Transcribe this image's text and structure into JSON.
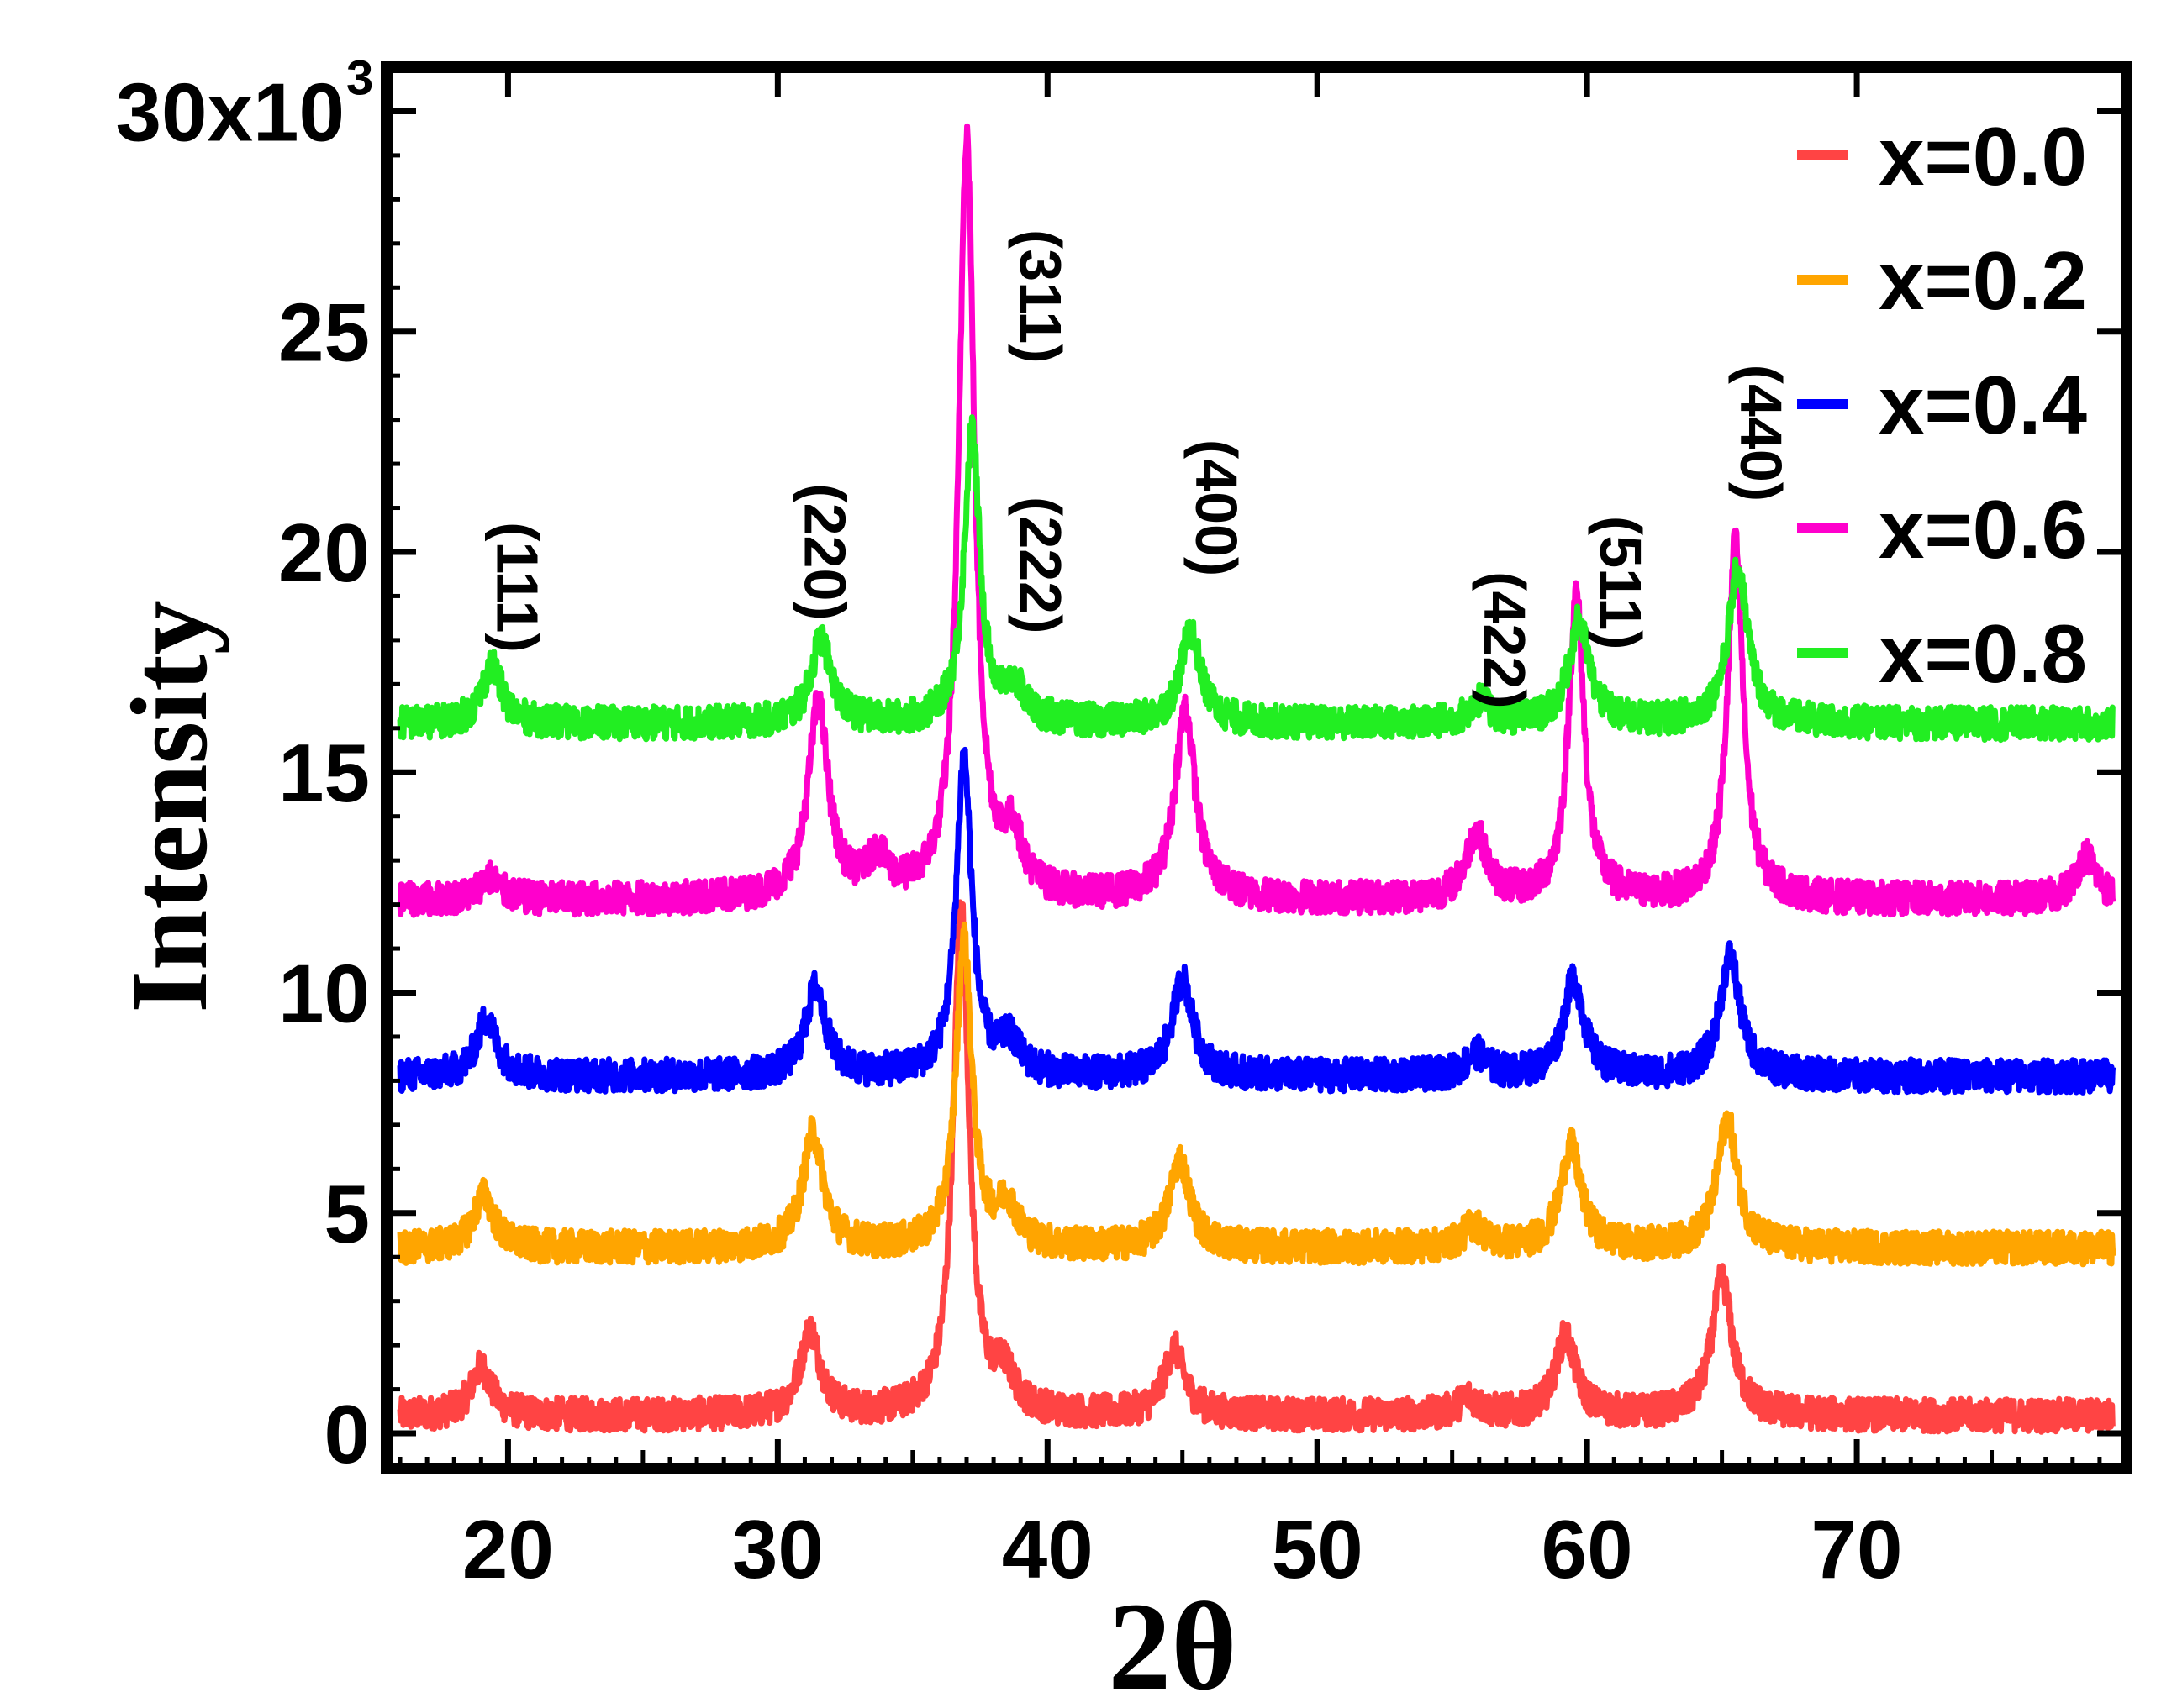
{
  "chart_data": {
    "type": "line",
    "title": "",
    "xlabel": "2θ",
    "ylabel": "Intensity",
    "xlim": [
      15.5,
      80
    ],
    "ylim": [
      -0.8,
      31
    ],
    "x_ticks": [
      20,
      30,
      40,
      50,
      60,
      70
    ],
    "x_tick_labels": [
      "20",
      "30",
      "40",
      "50",
      "60",
      "70"
    ],
    "y_ticks": [
      0,
      5,
      10,
      15,
      20,
      25,
      30
    ],
    "y_tick_labels": [
      "0",
      "5",
      "10",
      "15",
      "20",
      "25",
      "30x10"
    ],
    "y_exponent": "3",
    "y_units": "x10^3",
    "legend_position": "top-right",
    "x_range": [
      16,
      79.5
    ],
    "series": [
      {
        "name": "x=0.0",
        "color": "#ff4444",
        "baseline": 0.4,
        "peaks": [
          [
            19.0,
            1.1
          ],
          [
            31.2,
            1.9
          ],
          [
            36.8,
            11.6
          ],
          [
            38.4,
            0.8
          ],
          [
            44.7,
            1.5
          ],
          [
            55.6,
            0.4
          ],
          [
            59.2,
            1.8
          ],
          [
            65.0,
            3.1
          ]
        ]
      },
      {
        "name": "x=0.2",
        "color": "#ffa500",
        "baseline": 4.2,
        "peaks": [
          [
            19.1,
            1.2
          ],
          [
            31.3,
            2.6
          ],
          [
            36.9,
            7.0
          ],
          [
            38.5,
            0.9
          ],
          [
            44.9,
            2.0
          ],
          [
            55.8,
            0.5
          ],
          [
            59.4,
            2.3
          ],
          [
            65.2,
            2.9
          ]
        ]
      },
      {
        "name": "x=0.4",
        "color": "#0000ff",
        "baseline": 8.1,
        "peaks": [
          [
            19.2,
            1.3
          ],
          [
            31.4,
            2.0
          ],
          [
            36.9,
            7.2
          ],
          [
            38.6,
            0.7
          ],
          [
            45.0,
            2.2
          ],
          [
            55.9,
            0.5
          ],
          [
            59.5,
            2.2
          ],
          [
            65.3,
            2.7
          ]
        ]
      },
      {
        "name": "x=0.6",
        "color": "#ff00cc",
        "baseline": 12.1,
        "peaks": [
          [
            19.3,
            0.5
          ],
          [
            31.5,
            4.4
          ],
          [
            33.7,
            0.8
          ],
          [
            37.0,
            17.3
          ],
          [
            38.7,
            1.2
          ],
          [
            45.1,
            4.3
          ],
          [
            55.9,
            1.5
          ],
          [
            59.6,
            6.9
          ],
          [
            65.5,
            8.1
          ],
          [
            78.5,
            1.0
          ]
        ]
      },
      {
        "name": "x=0.8",
        "color": "#22ee22",
        "baseline": 16.1,
        "peaks": [
          [
            19.4,
            1.3
          ],
          [
            31.6,
            1.9
          ],
          [
            37.2,
            6.6
          ],
          [
            38.8,
            0.7
          ],
          [
            45.3,
            2.1
          ],
          [
            56.0,
            0.5
          ],
          [
            59.7,
            2.3
          ],
          [
            65.6,
            3.5
          ]
        ]
      }
    ],
    "annotations": [
      {
        "text": "(111)",
        "x": 19.6,
        "y": 19.2
      },
      {
        "text": "(220)",
        "x": 31.0,
        "y": 20.0
      },
      {
        "text": "(311)",
        "x": 39.0,
        "y": 25.8
      },
      {
        "text": "(222)",
        "x": 39.0,
        "y": 19.7
      },
      {
        "text": "(400)",
        "x": 45.5,
        "y": 21.0
      },
      {
        "text": "(422)",
        "x": 56.2,
        "y": 18.0
      },
      {
        "text": "(511)",
        "x": 60.5,
        "y": 19.3
      },
      {
        "text": "(440)",
        "x": 65.7,
        "y": 22.7
      }
    ]
  }
}
